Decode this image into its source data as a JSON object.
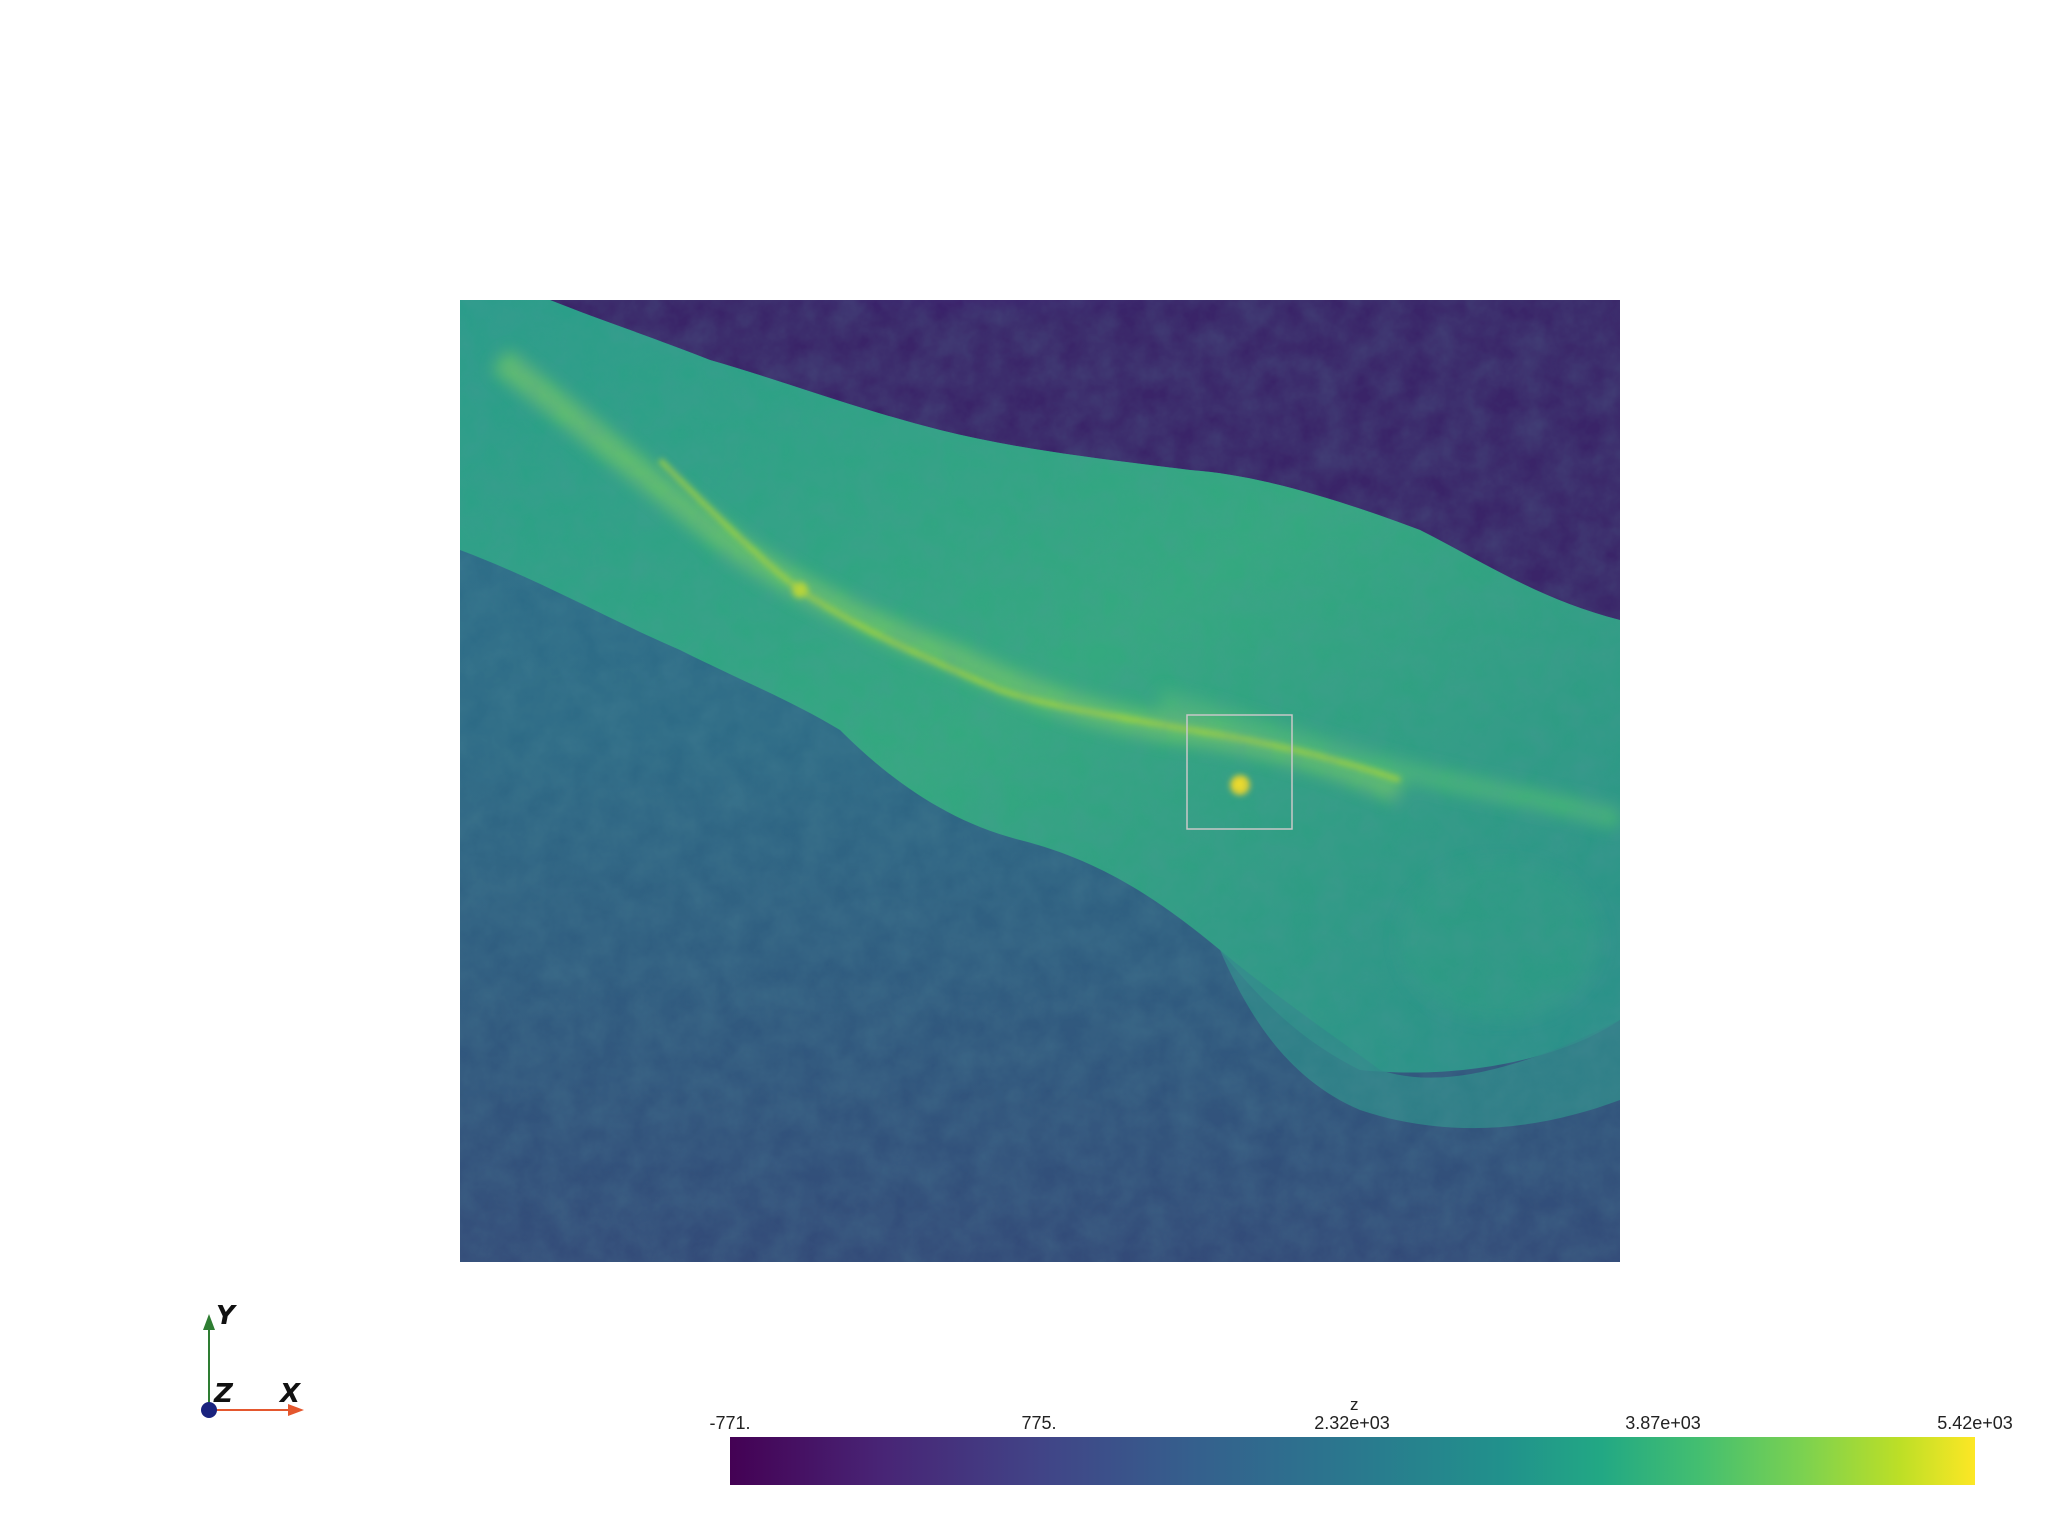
{
  "viewport": {
    "background": "#ffffff"
  },
  "terrain": {
    "colormap": "viridis",
    "selection_box_color": "#c8c8c8"
  },
  "axes_widget": {
    "x_label": "X",
    "y_label": "Y",
    "z_label": "Z",
    "x_color": "#e4572e",
    "y_color": "#2e7d32",
    "z_color": "#1a237e"
  },
  "colorbar": {
    "title": "z",
    "ticks": [
      "-771.",
      "775.",
      "2.32e+03",
      "3.87e+03",
      "5.42e+03"
    ],
    "min": -771,
    "max": 5420,
    "colormap": "viridis"
  }
}
